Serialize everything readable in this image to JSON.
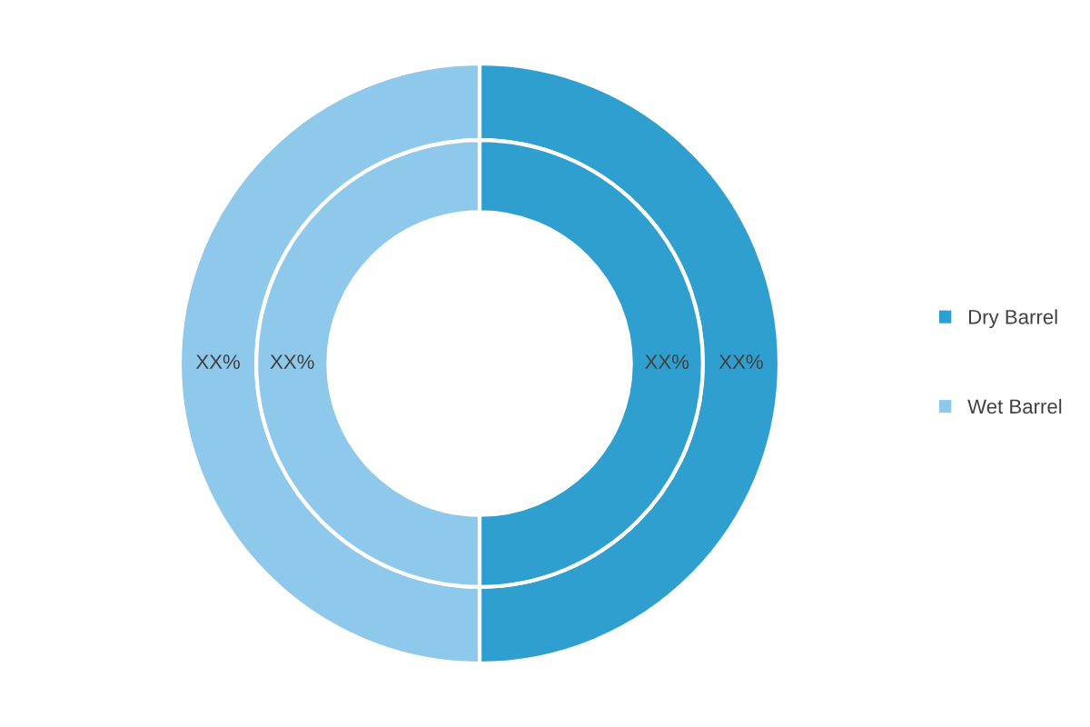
{
  "chart_data": {
    "type": "donut",
    "categories": [
      "Dry Barrel",
      "Wet Barrel"
    ],
    "series": [
      {
        "colors": [
          "#2e9fcf",
          "#8ec8ea"
        ],
        "values": [
          50,
          50
        ],
        "value_labels": [
          "XX%",
          "XX%"
        ]
      },
      {
        "colors": [
          "#2e9fcf",
          "#8ec8ea"
        ],
        "values": [
          50,
          50
        ],
        "value_labels": [
          "XX%",
          "XX%"
        ]
      }
    ],
    "legend": "right"
  }
}
